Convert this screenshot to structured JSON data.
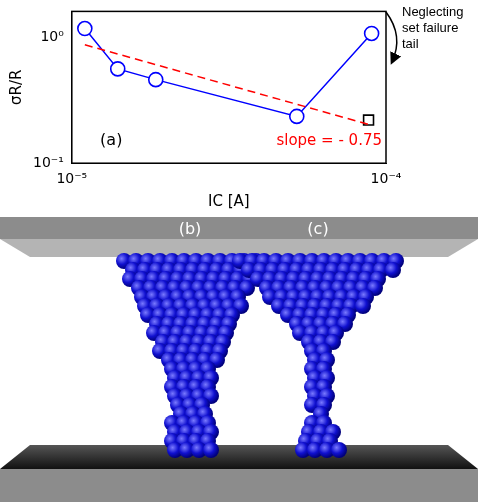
{
  "chart_data": {
    "type": "line",
    "log": true,
    "grid": false,
    "x_label": "IC [A]",
    "y_label": "σR/R",
    "xlim": [
      1e-05,
      0.0001
    ],
    "ylim": [
      0.1,
      1.6
    ],
    "xticks": [
      {
        "value": 1e-05,
        "label": "10⁻⁵"
      },
      {
        "value": 0.0001,
        "label": "10⁻⁴"
      }
    ],
    "yticks": [
      {
        "value": 0.1,
        "label": "10⁻¹"
      },
      {
        "value": 1,
        "label": "10⁰"
      }
    ],
    "series": [
      {
        "color": "#ff0000",
        "marker": "none",
        "line_style": "dashed",
        "x": [
          1.1e-05,
          9e-05
        ],
        "values": [
          0.87,
          0.2
        ]
      },
      {
        "color": "#0000ff",
        "marker": "circle",
        "line_style": "solid",
        "x": [
          1.1e-05,
          1.4e-05,
          1.85e-05,
          5.2e-05,
          9e-05
        ],
        "values": [
          1.17,
          0.56,
          0.46,
          0.235,
          1.07
        ]
      },
      {
        "color": "#000000",
        "marker": "square",
        "line_style": "none",
        "x": [
          8.8e-05
        ],
        "values": [
          0.22
        ]
      }
    ],
    "panel_label": "(a)",
    "slope_label": {
      "text": "slope = - 0.75",
      "color": "#ff0000"
    },
    "side_note": "Neglecting set failure tail"
  },
  "diagram": {
    "panels": [
      {
        "label": "(b)"
      },
      {
        "label": "(c)"
      }
    ]
  }
}
